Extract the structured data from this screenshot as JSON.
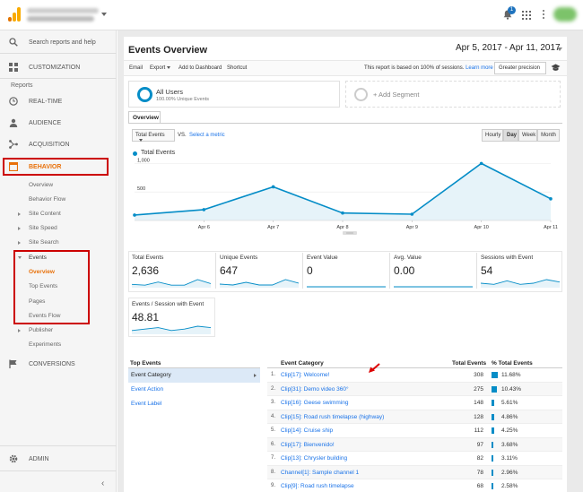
{
  "topbar": {
    "notification_count": "1"
  },
  "sidebar": {
    "search_placeholder": "Search reports and help",
    "customization": "CUSTOMIZATION",
    "reports_heading": "Reports",
    "realtime": "REAL-TIME",
    "audience": "AUDIENCE",
    "acquisition": "ACQUISITION",
    "behavior": "BEHAVIOR",
    "behavior_items": {
      "overview": "Overview",
      "behavior_flow": "Behavior Flow",
      "site_content": "Site Content",
      "site_speed": "Site Speed",
      "site_search": "Site Search",
      "events": "Events",
      "events_overview": "Overview",
      "top_events": "Top Events",
      "pages": "Pages",
      "events_flow": "Events Flow",
      "publisher": "Publisher",
      "experiments": "Experiments"
    },
    "conversions": "CONVERSIONS",
    "admin": "ADMIN"
  },
  "header": {
    "title": "Events Overview",
    "date_range": "Apr 5, 2017 - Apr 11, 2017"
  },
  "toolbar": {
    "email": "Email",
    "export": "Export",
    "add_to_dashboard": "Add to Dashboard",
    "shortcut": "Shortcut",
    "sampling_note": "This report is based on 100% of sessions.",
    "learn_more": "Learn more",
    "precision": "Greater precision"
  },
  "segments": {
    "active_title": "All Users",
    "active_sub": "100.00% Unique Events",
    "add_label": "+ Add Segment"
  },
  "tabs": {
    "overview": "Overview"
  },
  "chart_controls": {
    "metric": "Total Events",
    "vs": "VS.",
    "select_metric": "Select a metric",
    "granularity": [
      "Hourly",
      "Day",
      "Week",
      "Month"
    ],
    "active_granularity": "Day"
  },
  "chart_data": {
    "type": "area",
    "series": [
      {
        "name": "Total Events",
        "values": [
          95,
          190,
          590,
          130,
          110,
          1000,
          380
        ]
      }
    ],
    "categories": [
      "Apr 5",
      "Apr 6",
      "Apr 7",
      "Apr 8",
      "Apr 9",
      "Apr 10",
      "Apr 11"
    ],
    "x_tick_labels": [
      "Apr 6",
      "Apr 7",
      "Apr 8",
      "Apr 9",
      "Apr 10",
      "Apr 11"
    ],
    "y_ticks": [
      "1,000",
      "500"
    ],
    "ylim": [
      0,
      1100
    ],
    "grid": true,
    "color": "#058dc7",
    "fill": "#e6f3f9"
  },
  "scorecards": [
    {
      "label": "Total Events",
      "value": "2,636",
      "spark": [
        3,
        2,
        6,
        2,
        2,
        9,
        4
      ]
    },
    {
      "label": "Unique Events",
      "value": "647",
      "spark": [
        3,
        2,
        5,
        2,
        2,
        8,
        4
      ]
    },
    {
      "label": "Event Value",
      "value": "0",
      "spark": [
        0,
        0,
        0,
        0,
        0,
        0,
        0
      ]
    },
    {
      "label": "Avg. Value",
      "value": "0.00",
      "spark": [
        0,
        0,
        0,
        0,
        0,
        0,
        0
      ]
    },
    {
      "label": "Sessions with Event",
      "value": "54",
      "spark": [
        3,
        2,
        5,
        2,
        3,
        6,
        4
      ]
    },
    {
      "label": "Events / Session with Event",
      "value": "48.81",
      "spark": [
        2,
        3,
        4,
        2,
        3,
        5,
        4
      ]
    }
  ],
  "top_events": {
    "heading": "Top Events",
    "dimensions": [
      "Event Category",
      "Event Action",
      "Event Label"
    ],
    "active_dimension": "Event Category",
    "columns": {
      "category": "Event Category",
      "total": "Total Events",
      "pct": "% Total Events"
    },
    "rows": [
      {
        "num": "1.",
        "category": "Clip[17]: Welcome!",
        "total": "308",
        "pct": "11.68%",
        "share": 11.68
      },
      {
        "num": "2.",
        "category": "Clip[31]: Demo video 360°",
        "total": "275",
        "pct": "10.43%",
        "share": 10.43
      },
      {
        "num": "3.",
        "category": "Clip[16]: Geese swimming",
        "total": "148",
        "pct": "5.61%",
        "share": 5.61
      },
      {
        "num": "4.",
        "category": "Clip[15]: Road rush timelapse (highway)",
        "total": "128",
        "pct": "4.86%",
        "share": 4.86
      },
      {
        "num": "5.",
        "category": "Clip[14]: Cruise ship",
        "total": "112",
        "pct": "4.25%",
        "share": 4.25
      },
      {
        "num": "6.",
        "category": "Clip[17]: Bienvenido!",
        "total": "97",
        "pct": "3.68%",
        "share": 3.68
      },
      {
        "num": "7.",
        "category": "Clip[13]: Chrysler building",
        "total": "82",
        "pct": "3.11%",
        "share": 3.11
      },
      {
        "num": "8.",
        "category": "Channel[1]: Sample channel 1",
        "total": "78",
        "pct": "2.96%",
        "share": 2.96
      },
      {
        "num": "9.",
        "category": "Clip[9]: Road rush timelapse",
        "total": "68",
        "pct": "2.58%",
        "share": 2.58
      }
    ]
  }
}
